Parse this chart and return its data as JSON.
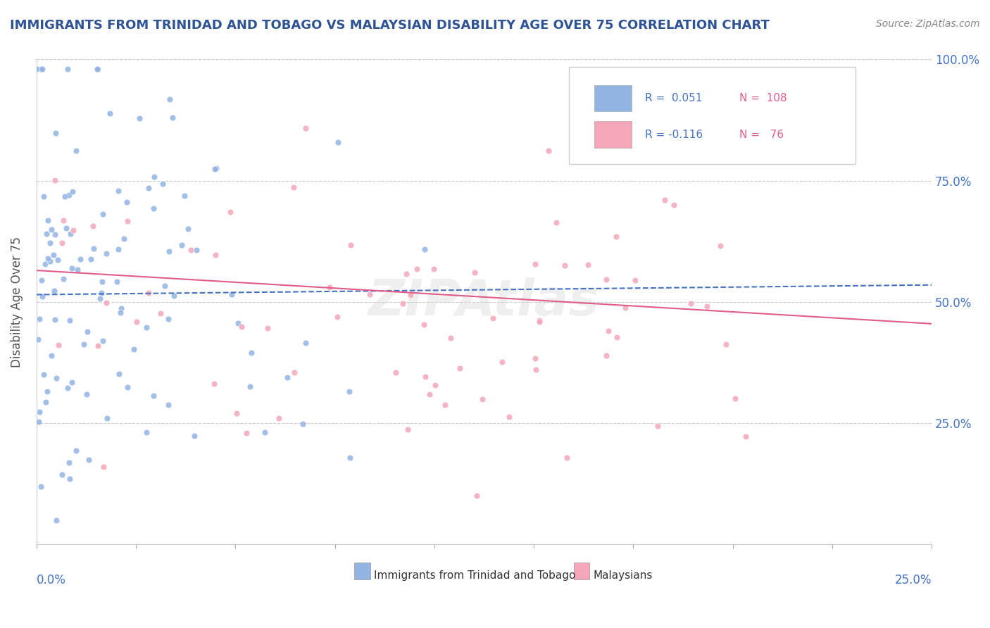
{
  "title": "IMMIGRANTS FROM TRINIDAD AND TOBAGO VS MALAYSIAN DISABILITY AGE OVER 75 CORRELATION CHART",
  "source": "Source: ZipAtlas.com",
  "ylabel": "Disability Age Over 75",
  "xmin": 0.0,
  "xmax": 0.25,
  "ymin": 0.0,
  "ymax": 1.0,
  "yticks": [
    0.25,
    0.5,
    0.75,
    1.0
  ],
  "ytick_labels": [
    "25.0%",
    "50.0%",
    "75.0%",
    "100.0%"
  ],
  "series1_label": "Immigrants from Trinidad and Tobago",
  "series1_color": "#92B4E3",
  "series1_R": 0.051,
  "series1_N": 108,
  "series2_label": "Malaysians",
  "series2_color": "#F4A7B9",
  "series2_R": -0.116,
  "series2_N": 76,
  "watermark": "ZIPAtlas",
  "background_color": "#ffffff",
  "grid_color": "#cccccc",
  "title_color": "#2F5496",
  "axis_label_color": "#555555",
  "tick_color": "#4472C4",
  "trend1_color": "#4472C4",
  "trend2_color": "#E05C8A",
  "legend_R_color": "#4472C4",
  "legend_N_color": "#E05C8A",
  "seed": 42
}
